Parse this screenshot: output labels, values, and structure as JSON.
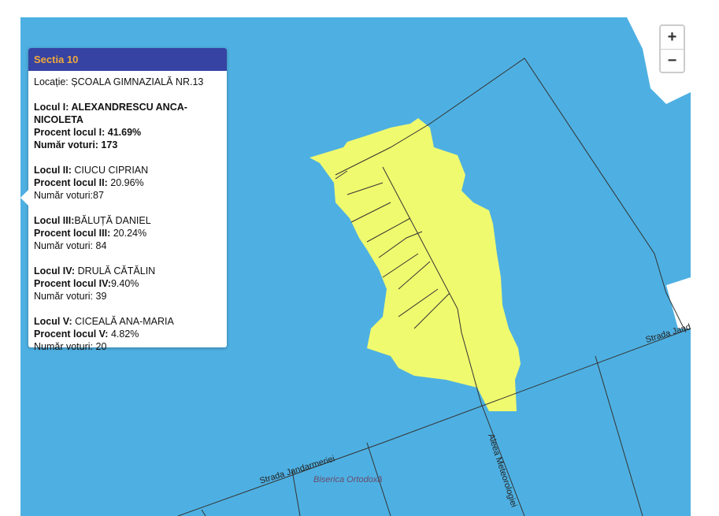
{
  "popup": {
    "title": "Sectia 10",
    "location": "Locație: ȘCOALA GIMNAZIALĂ NR.13",
    "places": [
      {
        "label": "Locul I:",
        "name": " ALEXANDRESCU ANCA-NICOLETA",
        "pct_label": "Procent locul I:",
        "pct": " 41.69%",
        "votes_label": "Număr voturi:",
        "votes": " 173"
      },
      {
        "label": "Locul II:",
        "name": " CIUCU CIPRIAN",
        "pct_label": "Procent locul II:",
        "pct": " 20.96%",
        "votes_label": "Număr voturi:",
        "votes": "87"
      },
      {
        "label": "Locul III:",
        "name": "BĂLUȚĂ DANIEL",
        "pct_label": "Procent locul III:",
        "pct": " 20.24%",
        "votes_label": "Număr voturi:",
        "votes": " 84"
      },
      {
        "label": "Locul IV:",
        "name": " DRULĂ CĂTĂLIN",
        "pct_label": "Procent locul IV:",
        "pct": "9.40%",
        "votes_label": "Număr voturi:",
        "votes": " 39"
      },
      {
        "label": "Locul V:",
        "name": " CICEALĂ ANA-MARIA",
        "pct_label": "Procent locul V:",
        "pct": " 4.82%",
        "votes_label": "Număr voturi:",
        "votes": " 20"
      }
    ]
  },
  "zoom": {
    "in": "+",
    "out": "−"
  },
  "map_labels": {
    "street1": "Strada Jandarmeriei",
    "street2": "Strada Jand",
    "street3": "Aleea Meteorologiei",
    "poi": "Biserica Ortodoxă"
  },
  "colors": {
    "water": "#4eb0e2",
    "district": "#f0fa6e",
    "header": "#3643a3",
    "title": "#f0a93a"
  }
}
